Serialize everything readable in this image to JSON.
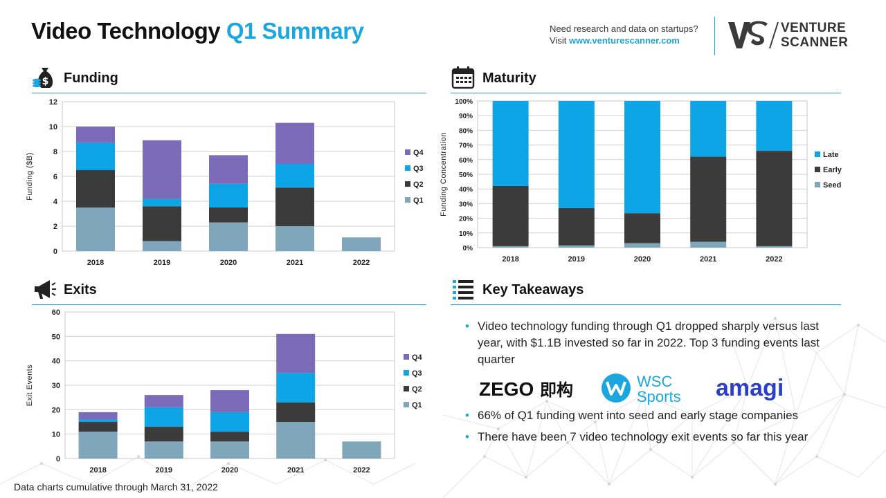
{
  "header": {
    "title_main": "Video Technology",
    "title_accent": "Q1 Summary",
    "promo_line1": "Need research and data on startups?",
    "promo_visit": "Visit ",
    "promo_link": "www.venturescanner.com",
    "brand_line1": "VENTURE",
    "brand_line2": "SCANNER"
  },
  "sections": {
    "funding": "Funding",
    "maturity": "Maturity",
    "exits": "Exits",
    "takeaways": "Key Takeaways"
  },
  "takeaways": {
    "items": [
      "Video technology funding through Q1 dropped sharply versus last year, with $1.1B invested so far in 2022. Top 3 funding events last quarter",
      "66% of Q1 funding went into seed and early stage companies",
      "There have been 7 video technology exit events so far this year"
    ],
    "logos": {
      "zego": "ZEGO",
      "zego_cn": "即构",
      "wsc1": "WSC",
      "wsc2": "Sports",
      "amagi": "amagi"
    }
  },
  "footer": "Data charts cumulative through March 31, 2022",
  "colors": {
    "accent": "#1aa7e0",
    "q1": "#7fa6ba",
    "q2": "#3b3b3b",
    "q3": "#0ea5e6",
    "q4": "#7b6bb8",
    "seed": "#7fa6ba",
    "early": "#3b3b3b",
    "late": "#0ea5e6"
  },
  "icons": {
    "funding": "money-bag-icon",
    "maturity": "calendar-icon",
    "exits": "megaphone-icon",
    "takeaways": "list-icon"
  },
  "chart_data": [
    {
      "id": "funding",
      "type": "bar",
      "stacked": true,
      "categories": [
        "2018",
        "2019",
        "2020",
        "2021",
        "2022"
      ],
      "series": [
        {
          "name": "Q1",
          "values": [
            3.5,
            0.8,
            2.3,
            2.0,
            1.1
          ]
        },
        {
          "name": "Q2",
          "values": [
            3.0,
            2.8,
            1.2,
            3.1,
            0
          ]
        },
        {
          "name": "Q3",
          "values": [
            2.2,
            0.6,
            1.9,
            1.9,
            0
          ]
        },
        {
          "name": "Q4",
          "values": [
            1.3,
            4.7,
            2.3,
            3.3,
            0
          ]
        }
      ],
      "ylabel": "Funding ($B)",
      "ylim": [
        0,
        12
      ],
      "yticks": [
        "0",
        "2",
        "4",
        "6",
        "8",
        "10",
        "12"
      ],
      "legend": "right",
      "grid": true
    },
    {
      "id": "maturity",
      "type": "bar",
      "stacked": true,
      "percent": true,
      "categories": [
        "2018",
        "2019",
        "2020",
        "2021",
        "2022"
      ],
      "series": [
        {
          "name": "Seed",
          "values": [
            1,
            1.5,
            3,
            4,
            1
          ]
        },
        {
          "name": "Early",
          "values": [
            41,
            25.5,
            20.5,
            58,
            65
          ]
        },
        {
          "name": "Late",
          "values": [
            58,
            73,
            76.5,
            38,
            34
          ]
        }
      ],
      "ylabel": "Funding Concentration",
      "ylim": [
        0,
        100
      ],
      "yticks": [
        "0%",
        "10%",
        "20%",
        "30%",
        "40%",
        "50%",
        "60%",
        "70%",
        "80%",
        "90%",
        "100%"
      ],
      "legend": "right",
      "grid": true
    },
    {
      "id": "exits",
      "type": "bar",
      "stacked": true,
      "categories": [
        "2018",
        "2019",
        "2020",
        "2021",
        "2022"
      ],
      "series": [
        {
          "name": "Q1",
          "values": [
            11,
            7,
            7,
            15,
            7
          ]
        },
        {
          "name": "Q2",
          "values": [
            4,
            6,
            4,
            8,
            0
          ]
        },
        {
          "name": "Q3",
          "values": [
            1,
            8,
            8,
            12,
            0
          ]
        },
        {
          "name": "Q4",
          "values": [
            3,
            5,
            9,
            16,
            0
          ]
        }
      ],
      "ylabel": "Exit Events",
      "ylim": [
        0,
        60
      ],
      "yticks": [
        "0",
        "10",
        "20",
        "30",
        "40",
        "50",
        "60"
      ],
      "legend": "right",
      "grid": true
    }
  ]
}
